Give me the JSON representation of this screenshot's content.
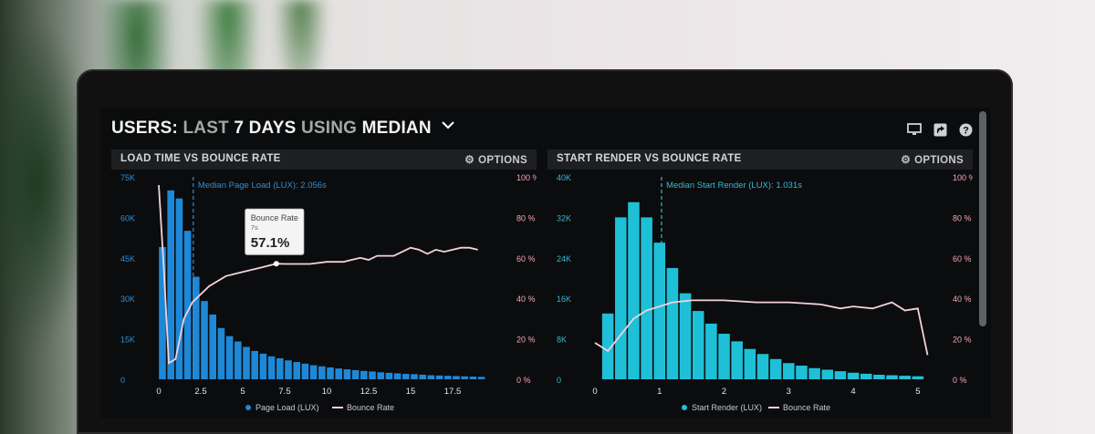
{
  "header": {
    "title_prefix": "USERS:",
    "title_part2": "LAST",
    "title_part3": "7 DAYS",
    "title_part4": "USING",
    "title_part5": "MEDIAN",
    "icons": [
      "monitor-icon",
      "share-icon",
      "help-icon"
    ]
  },
  "colors": {
    "bar_blue": "#1e88d8",
    "bar_cyan": "#1ec0d8",
    "bounce_line": "#f3d2dc",
    "axis_left_blue": "#2f8fd8",
    "axis_left_cyan": "#36b9d6",
    "axis_right": "#f6a6bd"
  },
  "panels": [
    {
      "title": "LOAD TIME VS BOUNCE RATE",
      "options_label": "OPTIONS",
      "median_label": "Median Page Load (LUX): 2.056s",
      "tooltip": {
        "label": "Bounce Rate",
        "sub": "7s",
        "value": "57.1%"
      },
      "legend": [
        "Page Load (LUX)",
        "Bounce Rate"
      ]
    },
    {
      "title": "START RENDER VS BOUNCE RATE",
      "options_label": "OPTIONS",
      "median_label": "Median Start Render (LUX): 1.031s",
      "legend": [
        "Start Render (LUX)",
        "Bounce Rate"
      ]
    }
  ],
  "chart_data": [
    {
      "type": "bar",
      "title": "LOAD TIME VS BOUNCE RATE",
      "x_ticks": [
        "0",
        "2.5",
        "5",
        "7.5",
        "10",
        "12.5",
        "15",
        "17.5"
      ],
      "y_ticks_left": [
        "0",
        "15K",
        "30K",
        "45K",
        "60K",
        "75K"
      ],
      "y_ticks_right": [
        "0 %",
        "20 %",
        "40 %",
        "60 %",
        "80 %",
        "100 %"
      ],
      "ylim_left": [
        0,
        75000
      ],
      "ylim_right": [
        0,
        100
      ],
      "xlim": [
        0,
        20
      ],
      "median_x": 2.056,
      "series": [
        {
          "name": "Page Load (LUX)",
          "x": [
            0,
            0.5,
            1,
            1.5,
            2,
            2.5,
            3,
            3.5,
            4,
            4.5,
            5,
            5.5,
            6,
            6.5,
            7,
            7.5,
            8,
            8.5,
            9,
            9.5,
            10,
            10.5,
            11,
            11.5,
            12,
            12.5,
            13,
            13.5,
            14,
            14.5,
            15,
            15.5,
            16,
            16.5,
            17,
            17.5,
            18,
            18.5,
            19
          ],
          "values": [
            49000,
            70000,
            67000,
            55000,
            38000,
            29000,
            24000,
            19000,
            16000,
            14000,
            12000,
            10500,
            9500,
            8500,
            7800,
            7000,
            6400,
            5800,
            5200,
            4800,
            4400,
            4000,
            3700,
            3400,
            3100,
            2900,
            2600,
            2400,
            2200,
            2000,
            1900,
            1700,
            1500,
            1400,
            1300,
            1200,
            1100,
            1000,
            900
          ]
        },
        {
          "name": "Bounce Rate",
          "x": [
            0,
            0.3,
            0.6,
            1,
            1.5,
            2,
            3,
            4,
            5,
            6,
            7,
            7.5,
            8,
            9,
            10,
            11,
            12,
            12.5,
            13,
            14,
            15,
            15.5,
            16,
            16.5,
            17,
            18,
            18.5,
            19
          ],
          "values": [
            96,
            55,
            8,
            10,
            30,
            38,
            46,
            51,
            53,
            55,
            57.1,
            57,
            57,
            57,
            58,
            58,
            60,
            59,
            61,
            61,
            65,
            64,
            62,
            64,
            63,
            65,
            65,
            64
          ]
        }
      ]
    },
    {
      "type": "bar",
      "title": "START RENDER VS BOUNCE RATE",
      "x_ticks": [
        "0",
        "1",
        "2",
        "3",
        "4",
        "5"
      ],
      "y_ticks_left": [
        "0",
        "8K",
        "16K",
        "24K",
        "32K",
        "40K"
      ],
      "y_ticks_right": [
        "0 %",
        "20 %",
        "40 %",
        "60 %",
        "80 %",
        "100 %"
      ],
      "ylim_left": [
        0,
        40000
      ],
      "ylim_right": [
        0,
        100
      ],
      "xlim": [
        0,
        5.2
      ],
      "median_x": 1.031,
      "series": [
        {
          "name": "Start Render (LUX)",
          "x": [
            0.2,
            0.4,
            0.6,
            0.8,
            1,
            1.2,
            1.4,
            1.6,
            1.8,
            2,
            2.2,
            2.4,
            2.6,
            2.8,
            3,
            3.2,
            3.4,
            3.6,
            3.8,
            4,
            4.2,
            4.4,
            4.6,
            4.8,
            5
          ],
          "values": [
            13000,
            32000,
            35000,
            32000,
            27000,
            22000,
            17000,
            13500,
            11000,
            9000,
            7500,
            6000,
            5000,
            4000,
            3200,
            2700,
            2200,
            1900,
            1600,
            1300,
            1100,
            900,
            800,
            700,
            600
          ]
        },
        {
          "name": "Bounce Rate",
          "x": [
            0,
            0.2,
            0.4,
            0.6,
            0.8,
            1,
            1.2,
            1.5,
            2,
            2.5,
            3,
            3.5,
            3.8,
            4,
            4.3,
            4.6,
            4.8,
            5,
            5.15
          ],
          "values": [
            18,
            14,
            22,
            30,
            34,
            36,
            38,
            39,
            39,
            38,
            38,
            37,
            35,
            36,
            35,
            38,
            34,
            35,
            12
          ]
        }
      ]
    }
  ]
}
